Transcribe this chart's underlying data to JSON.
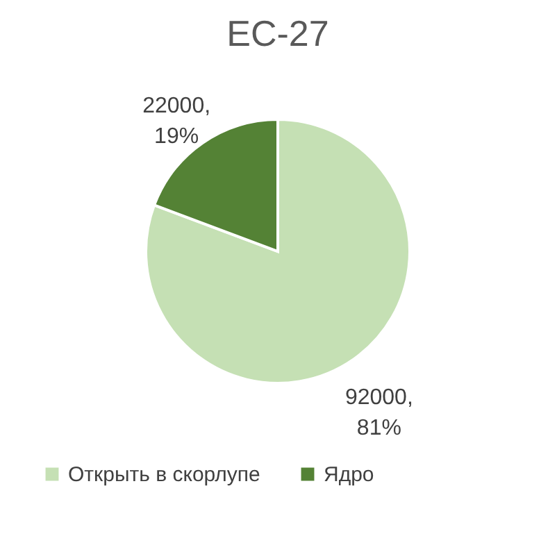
{
  "chart_data": {
    "type": "pie",
    "title": "ЕС-27",
    "categories": [
      "Открыть в скорлупе",
      "Ядро"
    ],
    "values": [
      92000,
      22000
    ],
    "colors": [
      "#c5e0b4",
      "#548235"
    ],
    "value_labels": [
      "92000,\n81%",
      "22000,\n19%"
    ],
    "legend": "bottom"
  }
}
